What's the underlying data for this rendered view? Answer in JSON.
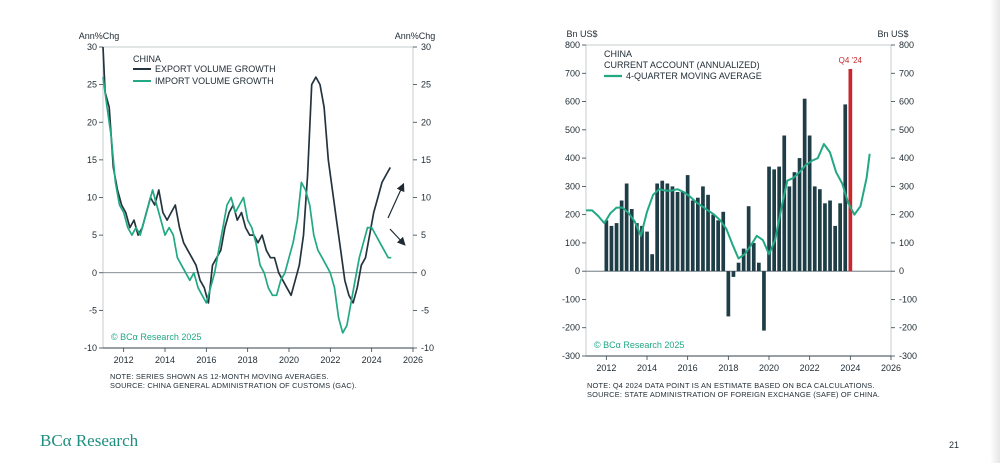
{
  "chart_data": [
    {
      "type": "line",
      "title": "CHINA",
      "ylabel_left": "Ann%Chg",
      "ylabel_right": "Ann%Chg",
      "ylim": [
        -10,
        30
      ],
      "yticks": [
        -10,
        -5,
        0,
        5,
        10,
        15,
        20,
        25,
        30
      ],
      "xlim": [
        2011,
        2026
      ],
      "xticks": [
        2012,
        2014,
        2016,
        2018,
        2020,
        2022,
        2024,
        2026
      ],
      "legend_position": "top-left",
      "watermark": "© BCα Research 2025",
      "series": [
        {
          "name": "EXPORT VOLUME GROWTH",
          "color": "#24343f",
          "x": [
            2011.0,
            2011.1,
            2011.3,
            2011.5,
            2011.7,
            2011.9,
            2012.1,
            2012.3,
            2012.5,
            2012.7,
            2012.9,
            2013.1,
            2013.3,
            2013.5,
            2013.7,
            2013.9,
            2014.1,
            2014.3,
            2014.5,
            2014.7,
            2014.9,
            2015.1,
            2015.3,
            2015.5,
            2015.7,
            2015.9,
            2016.1,
            2016.3,
            2016.5,
            2016.7,
            2016.9,
            2017.1,
            2017.3,
            2017.5,
            2017.7,
            2017.9,
            2018.1,
            2018.3,
            2018.5,
            2018.7,
            2018.9,
            2019.1,
            2019.3,
            2019.5,
            2019.7,
            2019.9,
            2020.1,
            2020.3,
            2020.5,
            2020.7,
            2020.9,
            2021.1,
            2021.3,
            2021.5,
            2021.7,
            2021.9,
            2022.1,
            2022.3,
            2022.5,
            2022.7,
            2022.9,
            2023.1,
            2023.3,
            2023.5,
            2023.7,
            2023.9,
            2024.1,
            2024.3,
            2024.5,
            2024.7,
            2024.9
          ],
          "y": [
            30,
            24,
            22,
            14,
            11,
            9,
            8,
            6,
            7,
            5,
            6,
            8,
            10,
            9,
            11,
            8,
            7,
            8,
            9,
            6,
            4,
            3,
            2,
            1,
            -1,
            -2,
            -4,
            1,
            2,
            3,
            6,
            8,
            9,
            7,
            8,
            6,
            5,
            5,
            4,
            5,
            3,
            2,
            2,
            0,
            -1,
            -2,
            -3,
            -1,
            1,
            5,
            13,
            25,
            26,
            25,
            22,
            15,
            11,
            7,
            3,
            -1,
            -3,
            -4,
            -2,
            1,
            2,
            5,
            8,
            10,
            12,
            13,
            14
          ]
        },
        {
          "name": "IMPORT VOLUME GROWTH",
          "color": "#22a883",
          "x": [
            2011.0,
            2011.2,
            2011.4,
            2011.6,
            2011.8,
            2012.0,
            2012.2,
            2012.4,
            2012.6,
            2012.8,
            2013.0,
            2013.2,
            2013.4,
            2013.6,
            2013.8,
            2014.0,
            2014.2,
            2014.4,
            2014.6,
            2014.8,
            2015.0,
            2015.2,
            2015.4,
            2015.6,
            2015.8,
            2016.0,
            2016.2,
            2016.4,
            2016.6,
            2016.8,
            2017.0,
            2017.2,
            2017.4,
            2017.6,
            2017.8,
            2018.0,
            2018.2,
            2018.4,
            2018.6,
            2018.8,
            2019.0,
            2019.2,
            2019.4,
            2019.6,
            2019.8,
            2020.0,
            2020.2,
            2020.4,
            2020.6,
            2020.8,
            2021.0,
            2021.2,
            2021.4,
            2021.6,
            2021.8,
            2022.0,
            2022.2,
            2022.4,
            2022.6,
            2022.8,
            2023.0,
            2023.2,
            2023.4,
            2023.6,
            2023.8,
            2024.0,
            2024.2,
            2024.4,
            2024.6,
            2024.8,
            2024.95
          ],
          "y": [
            26,
            22,
            18,
            12,
            9,
            8,
            6,
            5,
            6,
            5,
            7,
            9,
            11,
            9,
            7,
            5,
            6,
            5,
            2,
            1,
            0,
            -1,
            0,
            -2,
            -3,
            -4,
            -2,
            0,
            3,
            6,
            9,
            10,
            8,
            9,
            10,
            7,
            6,
            4,
            1,
            0,
            -2,
            -3,
            -3,
            -1,
            0,
            2,
            4,
            7,
            12,
            11,
            9,
            5,
            3,
            2,
            1,
            0,
            -2,
            -6,
            -8,
            -7,
            -4,
            -1,
            2,
            4,
            6,
            6,
            5,
            4,
            3,
            2,
            2
          ]
        }
      ],
      "annotations": [
        {
          "type": "arrow",
          "direction": "up-right"
        },
        {
          "type": "arrow",
          "direction": "down-right"
        }
      ],
      "notes": [
        "NOTE: SERIES SHOWN AS 12-MONTH MOVING AVERAGES.",
        "SOURCE: CHINA GENERAL ADMINISTRATION OF CUSTOMS (GAC)."
      ]
    },
    {
      "type": "bar",
      "title": "CHINA",
      "subtitle": "CURRENT ACCOUNT (ANNUALIZED)",
      "ylabel_left": "Bn US$",
      "ylabel_right": "Bn US$",
      "ylim": [
        -300,
        800
      ],
      "yticks": [
        -300,
        -200,
        -100,
        0,
        100,
        200,
        300,
        400,
        500,
        600,
        700,
        800
      ],
      "xlim": [
        2011,
        2026
      ],
      "xticks": [
        2012,
        2014,
        2016,
        2018,
        2020,
        2022,
        2024,
        2026
      ],
      "legend_position": "top-left",
      "watermark": "© BCα Research 2025",
      "bar_color": "#1f3d47",
      "highlight_color": "#c8282d",
      "highlight_label": "Q4 '24",
      "bars": [
        180,
        160,
        170,
        250,
        310,
        220,
        170,
        160,
        140,
        60,
        310,
        320,
        310,
        300,
        280,
        280,
        340,
        250,
        260,
        300,
        270,
        200,
        180,
        210,
        -160,
        -20,
        30,
        80,
        230,
        100,
        30,
        -210,
        370,
        360,
        370,
        480,
        300,
        350,
        400,
        610,
        480,
        300,
        290,
        240,
        250,
        160,
        240,
        590,
        715
      ],
      "bar_start_year": 2012.0,
      "bar_step": 0.25,
      "series": [
        {
          "name": "4-QUARTER MOVING AVERAGE",
          "color": "#22a883",
          "x": [
            2011.0,
            2011.3,
            2011.6,
            2011.9,
            2012.2,
            2012.5,
            2012.8,
            2013.1,
            2013.4,
            2013.7,
            2014.0,
            2014.3,
            2014.6,
            2014.9,
            2015.2,
            2015.5,
            2015.8,
            2016.1,
            2016.4,
            2016.7,
            2017.0,
            2017.3,
            2017.6,
            2017.9,
            2018.2,
            2018.5,
            2018.8,
            2019.1,
            2019.4,
            2019.7,
            2020.0,
            2020.3,
            2020.6,
            2020.9,
            2021.2,
            2021.5,
            2021.8,
            2022.1,
            2022.4,
            2022.7,
            2023.0,
            2023.3,
            2023.6,
            2023.9,
            2024.2,
            2024.5,
            2024.8,
            2024.95
          ],
          "y": [
            215,
            215,
            195,
            170,
            205,
            225,
            225,
            205,
            175,
            125,
            210,
            270,
            290,
            285,
            285,
            290,
            280,
            265,
            245,
            230,
            215,
            200,
            180,
            150,
            95,
            45,
            60,
            90,
            125,
            110,
            60,
            110,
            220,
            320,
            330,
            350,
            375,
            390,
            400,
            450,
            420,
            350,
            310,
            240,
            200,
            230,
            330,
            415
          ]
        }
      ],
      "notes": [
        "NOTE: Q4 2024 DATA POINT IS AN ESTIMATE BASED ON BCA CALCULATIONS.",
        "SOURCE: STATE ADMINISTRATION OF FOREIGN EXCHANGE (SAFE) OF CHINA."
      ]
    }
  ],
  "footer": {
    "brand": "BCα Research",
    "page_number": "21"
  }
}
